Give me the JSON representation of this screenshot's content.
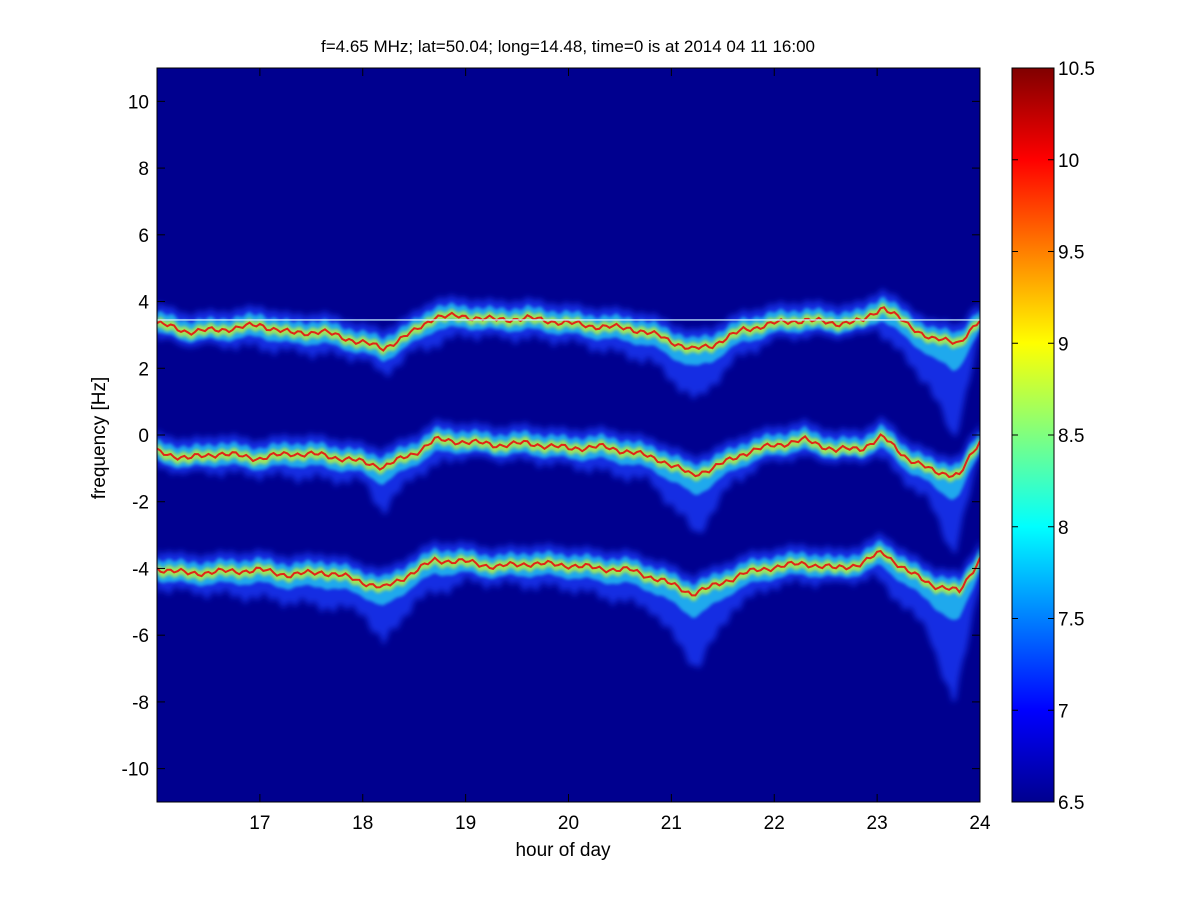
{
  "figure": {
    "background": "#ffffff",
    "plot_background": "#00008f"
  },
  "chart_data": {
    "type": "heatmap",
    "title": "f=4.65 MHz;  lat=50.04; long=14.48, time=0 is at 2014 04 11 16:00",
    "xlabel": "hour of day",
    "ylabel": "frequency [Hz]",
    "xlim": [
      16,
      24
    ],
    "ylim": [
      -11,
      11
    ],
    "x_ticks": [
      17,
      18,
      19,
      20,
      21,
      22,
      23,
      24
    ],
    "x_tick_labels": [
      "17",
      "18",
      "19",
      "20",
      "21",
      "22",
      "23",
      "24"
    ],
    "y_ticks": [
      10,
      8,
      6,
      4,
      2,
      0,
      -2,
      -4,
      -6,
      -8,
      -10
    ],
    "y_tick_labels": [
      "10",
      "8",
      "6",
      "4",
      "2",
      "0",
      "-2",
      "-4",
      "-6",
      "-8",
      "-10"
    ],
    "grid": false,
    "colormap": "jet",
    "colorbar": {
      "range": [
        6.5,
        10.5
      ],
      "ticks": [
        10.5,
        10,
        9.5,
        9,
        8.5,
        8,
        7.5,
        7,
        6.5
      ],
      "tick_labels": [
        "10.5",
        "10",
        "9.5",
        "9",
        "8.5",
        "8",
        "7.5",
        "7",
        "6.5"
      ]
    },
    "ridges": [
      {
        "center_hz": [
          [
            16.0,
            3.35
          ],
          [
            16.3,
            3.1
          ],
          [
            16.6,
            3.15
          ],
          [
            17.0,
            3.3
          ],
          [
            17.3,
            3.05
          ],
          [
            17.6,
            3.1
          ],
          [
            17.9,
            2.85
          ],
          [
            18.2,
            2.6
          ],
          [
            18.5,
            3.1
          ],
          [
            18.7,
            3.55
          ],
          [
            19.0,
            3.55
          ],
          [
            19.3,
            3.45
          ],
          [
            19.6,
            3.5
          ],
          [
            20.0,
            3.35
          ],
          [
            20.3,
            3.25
          ],
          [
            20.6,
            3.2
          ],
          [
            20.9,
            2.95
          ],
          [
            21.2,
            2.55
          ],
          [
            21.4,
            2.7
          ],
          [
            21.7,
            3.15
          ],
          [
            22.0,
            3.35
          ],
          [
            22.3,
            3.45
          ],
          [
            22.6,
            3.35
          ],
          [
            22.85,
            3.4
          ],
          [
            23.05,
            3.85
          ],
          [
            23.3,
            3.3
          ],
          [
            23.55,
            2.85
          ],
          [
            23.8,
            2.8
          ],
          [
            24.0,
            3.4
          ]
        ],
        "lower_tail_hz": [
          [
            16.0,
            2.9
          ],
          [
            17.0,
            2.6
          ],
          [
            18.0,
            2.3
          ],
          [
            18.2,
            1.8
          ],
          [
            18.5,
            2.5
          ],
          [
            19.0,
            3.0
          ],
          [
            20.0,
            2.8
          ],
          [
            20.8,
            2.2
          ],
          [
            21.25,
            1.0
          ],
          [
            21.6,
            2.2
          ],
          [
            22.0,
            2.9
          ],
          [
            23.0,
            3.2
          ],
          [
            23.5,
            1.5
          ],
          [
            23.75,
            -0.2
          ],
          [
            24.0,
            3.0
          ]
        ],
        "constant_line_hz": 3.45
      },
      {
        "center_hz": [
          [
            16.0,
            -0.5
          ],
          [
            16.3,
            -0.7
          ],
          [
            16.6,
            -0.55
          ],
          [
            17.0,
            -0.7
          ],
          [
            17.3,
            -0.55
          ],
          [
            17.6,
            -0.6
          ],
          [
            17.9,
            -0.75
          ],
          [
            18.2,
            -0.95
          ],
          [
            18.5,
            -0.55
          ],
          [
            18.7,
            -0.15
          ],
          [
            19.0,
            -0.2
          ],
          [
            19.3,
            -0.3
          ],
          [
            19.6,
            -0.25
          ],
          [
            20.0,
            -0.4
          ],
          [
            20.3,
            -0.35
          ],
          [
            20.6,
            -0.5
          ],
          [
            20.9,
            -0.75
          ],
          [
            21.2,
            -1.2
          ],
          [
            21.4,
            -1.0
          ],
          [
            21.7,
            -0.55
          ],
          [
            22.0,
            -0.3
          ],
          [
            22.3,
            -0.15
          ],
          [
            22.6,
            -0.45
          ],
          [
            22.85,
            -0.4
          ],
          [
            23.05,
            -0.05
          ],
          [
            23.3,
            -0.7
          ],
          [
            23.55,
            -1.1
          ],
          [
            23.8,
            -1.2
          ],
          [
            24.0,
            -0.2
          ]
        ],
        "lower_tail_hz": [
          [
            16.0,
            -1.0
          ],
          [
            17.0,
            -1.2
          ],
          [
            18.0,
            -1.4
          ],
          [
            18.2,
            -2.3
          ],
          [
            18.5,
            -1.2
          ],
          [
            19.0,
            -0.6
          ],
          [
            20.0,
            -0.9
          ],
          [
            20.8,
            -1.4
          ],
          [
            21.25,
            -3.0
          ],
          [
            21.6,
            -1.4
          ],
          [
            22.0,
            -0.7
          ],
          [
            23.0,
            -0.6
          ],
          [
            23.5,
            -2.0
          ],
          [
            23.75,
            -3.6
          ],
          [
            24.0,
            -0.6
          ]
        ]
      },
      {
        "center_hz": [
          [
            16.0,
            -4.0
          ],
          [
            16.3,
            -4.15
          ],
          [
            16.6,
            -4.1
          ],
          [
            17.0,
            -4.05
          ],
          [
            17.3,
            -4.2
          ],
          [
            17.6,
            -4.1
          ],
          [
            17.9,
            -4.3
          ],
          [
            18.2,
            -4.6
          ],
          [
            18.5,
            -4.1
          ],
          [
            18.7,
            -3.75
          ],
          [
            19.0,
            -3.8
          ],
          [
            19.3,
            -3.95
          ],
          [
            19.6,
            -3.85
          ],
          [
            20.0,
            -3.9
          ],
          [
            20.3,
            -4.0
          ],
          [
            20.6,
            -4.05
          ],
          [
            20.9,
            -4.35
          ],
          [
            21.2,
            -4.75
          ],
          [
            21.4,
            -4.55
          ],
          [
            21.7,
            -4.15
          ],
          [
            22.0,
            -3.95
          ],
          [
            22.3,
            -3.85
          ],
          [
            22.6,
            -4.0
          ],
          [
            22.85,
            -3.85
          ],
          [
            23.05,
            -3.5
          ],
          [
            23.3,
            -4.1
          ],
          [
            23.55,
            -4.5
          ],
          [
            23.8,
            -4.7
          ],
          [
            24.0,
            -3.7
          ]
        ],
        "lower_tail_hz": [
          [
            16.0,
            -4.6
          ],
          [
            17.0,
            -4.9
          ],
          [
            18.0,
            -5.3
          ],
          [
            18.2,
            -6.3
          ],
          [
            18.5,
            -5.0
          ],
          [
            19.0,
            -4.4
          ],
          [
            20.0,
            -4.6
          ],
          [
            20.8,
            -5.2
          ],
          [
            21.25,
            -7.0
          ],
          [
            21.6,
            -5.2
          ],
          [
            22.0,
            -4.5
          ],
          [
            23.0,
            -4.3
          ],
          [
            23.5,
            -5.9
          ],
          [
            23.75,
            -8.2
          ],
          [
            24.0,
            -4.3
          ]
        ]
      }
    ]
  }
}
